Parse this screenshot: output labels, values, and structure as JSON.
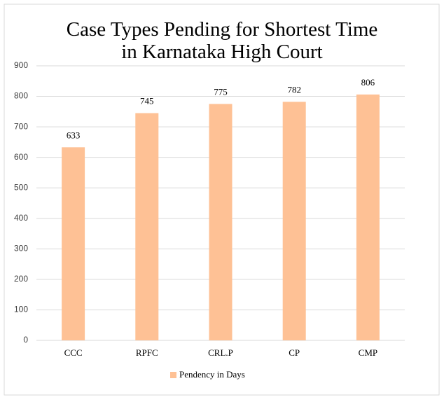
{
  "chart_data": {
    "type": "bar",
    "title": "Case Types Pending for Shortest Time in Karnataka High Court",
    "categories": [
      "CCC",
      "RPFC",
      "CRL.P",
      "CP",
      "CMP"
    ],
    "series": [
      {
        "name": "Pendency in Days",
        "color": "#fec195",
        "values": [
          633,
          745,
          775,
          782,
          806
        ]
      }
    ],
    "ylim": [
      0,
      900
    ],
    "yticks": [
      0,
      100,
      200,
      300,
      400,
      500,
      600,
      700,
      800,
      900
    ],
    "grid": true,
    "data_labels": true,
    "legend": "bottom"
  }
}
